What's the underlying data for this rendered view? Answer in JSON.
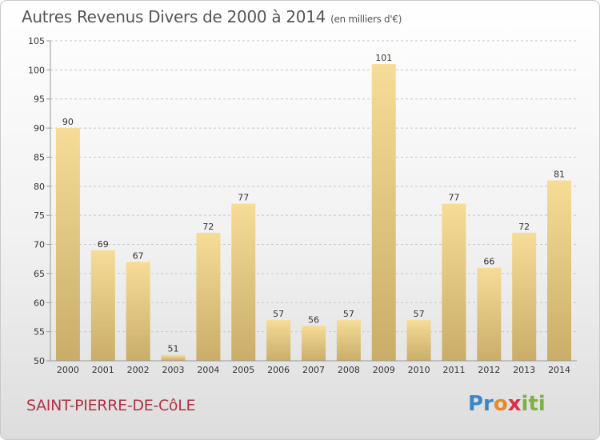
{
  "header": {
    "title": "Autres Revenus Divers de 2000 à 2014",
    "unit": "(en milliers d'€)"
  },
  "commune": "SAINT-PIERRE-DE-CôLE",
  "logo": {
    "text": "Proxiti"
  },
  "colors": {
    "bar_light": "#f6dc97",
    "bar_dark": "#c9ad68",
    "grid": "#c8c8c8",
    "title": "#555555",
    "commune": "#b03346"
  },
  "chart_data": {
    "type": "bar",
    "categories": [
      "2000",
      "2001",
      "2002",
      "2003",
      "2004",
      "2005",
      "2006",
      "2007",
      "2008",
      "2009",
      "2010",
      "2011",
      "2012",
      "2013",
      "2014"
    ],
    "values": [
      90,
      69,
      67,
      51,
      72,
      77,
      57,
      56,
      57,
      101,
      57,
      77,
      66,
      72,
      81
    ],
    "ylim": [
      50,
      105
    ],
    "yticks": [
      50,
      55,
      60,
      65,
      70,
      75,
      80,
      85,
      90,
      95,
      100,
      105
    ],
    "grid": true,
    "data_labels": true,
    "title": "Autres Revenus Divers de 2000 à 2014",
    "xlabel": "",
    "ylabel": ""
  }
}
